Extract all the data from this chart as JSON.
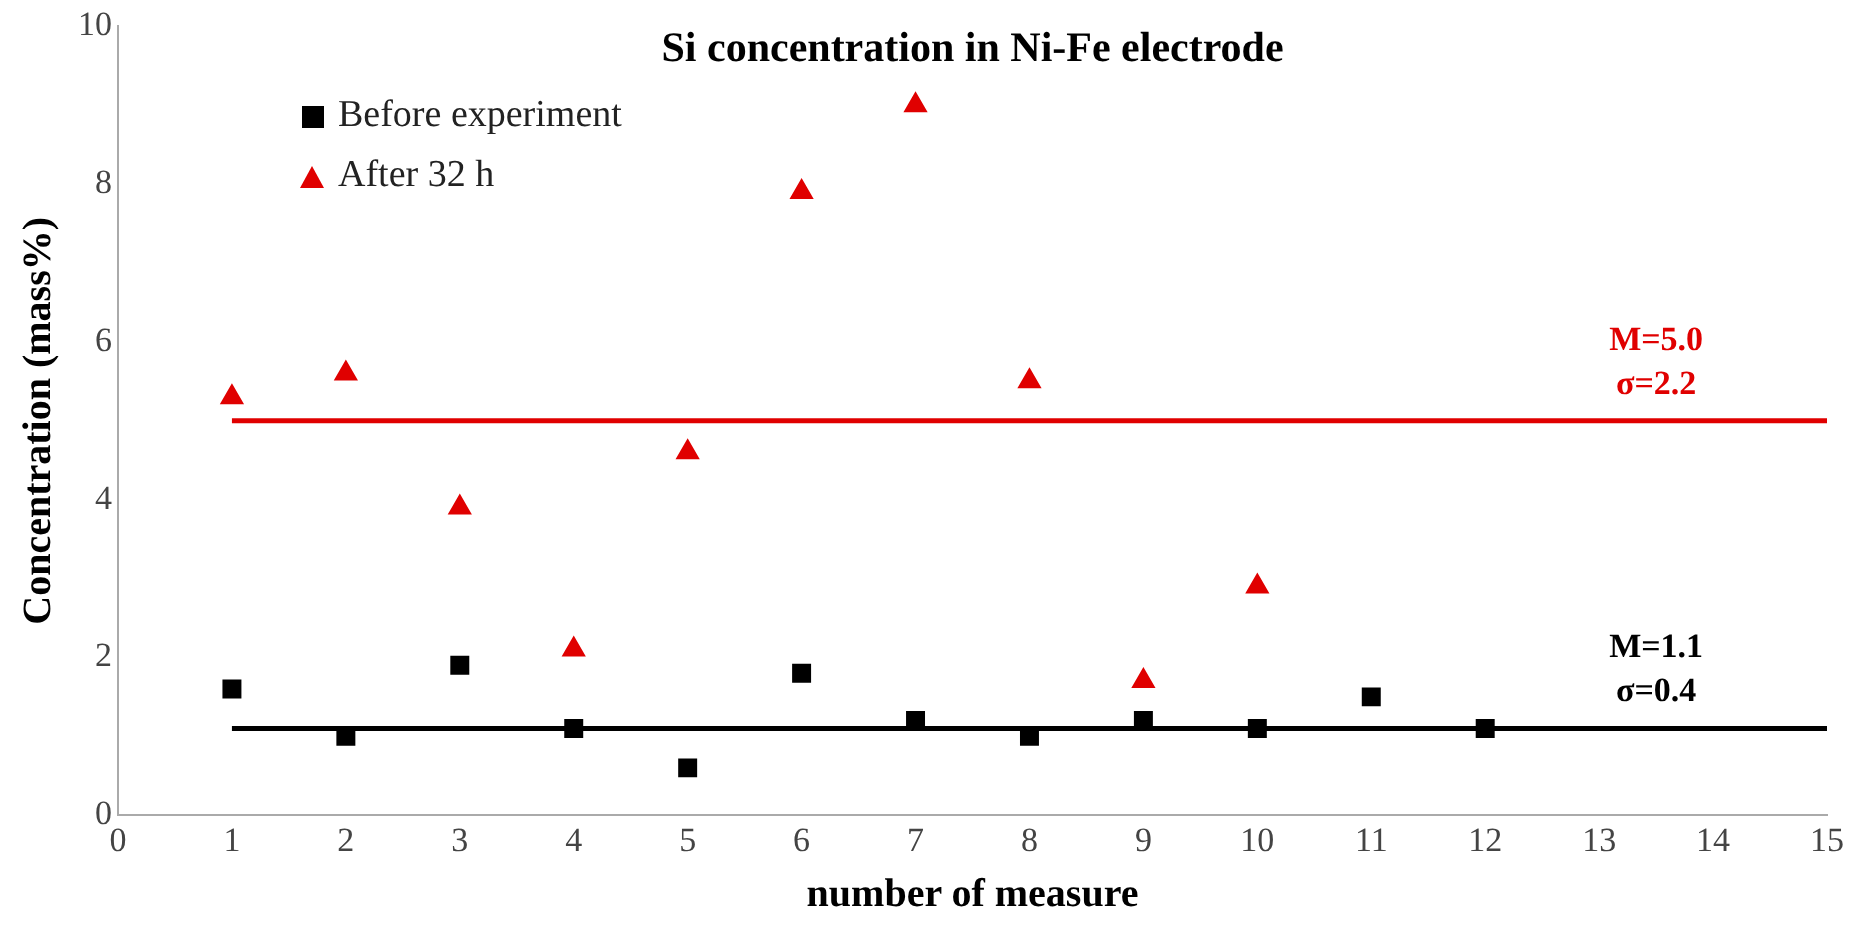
{
  "chart_data": {
    "type": "scatter",
    "title": "Si concentration in Ni-Fe electrode",
    "xlabel": "number of measure",
    "ylabel": "Concentration (mass%)",
    "series": [
      {
        "name": "Before experiment",
        "color": "#000000",
        "marker": "square",
        "x": [
          1,
          2,
          3,
          4,
          5,
          6,
          7,
          8,
          9,
          10,
          11,
          12
        ],
        "values": [
          1.6,
          1.0,
          1.9,
          1.1,
          0.6,
          1.8,
          1.2,
          1.0,
          1.2,
          1.1,
          1.5,
          1.1
        ]
      },
      {
        "name": "After 32 h",
        "color": "#e00000",
        "marker": "triangle",
        "x": [
          1,
          2,
          3,
          4,
          5,
          6,
          7,
          8,
          9,
          10
        ],
        "values": [
          5.3,
          5.6,
          3.9,
          2.1,
          4.6,
          7.9,
          9.0,
          5.5,
          1.7,
          2.9
        ]
      },
      {
        "type": "line",
        "color": "#e00000",
        "marker": "none",
        "x": [
          1,
          15
        ],
        "values": [
          5.0,
          5.0
        ]
      },
      {
        "type": "line",
        "color": "#000000",
        "marker": "none",
        "x": [
          1,
          15
        ],
        "values": [
          1.1,
          1.1
        ]
      }
    ],
    "annotations": [
      {
        "text": "M=5.0\nσ=2.2",
        "x": 13.5,
        "y": 5.0
      },
      {
        "text": "M=1.1\nσ=0.4",
        "x": 13.5,
        "y": 1.1
      }
    ],
    "xlim": [
      0,
      15
    ],
    "xticks": [
      0,
      1,
      2,
      3,
      4,
      5,
      6,
      7,
      8,
      9,
      10,
      11,
      12,
      13,
      14,
      15
    ],
    "ylim": [
      0,
      10
    ],
    "yticks": [
      0,
      2,
      4,
      6,
      8,
      10
    ],
    "grid": false,
    "legend": "top left"
  }
}
